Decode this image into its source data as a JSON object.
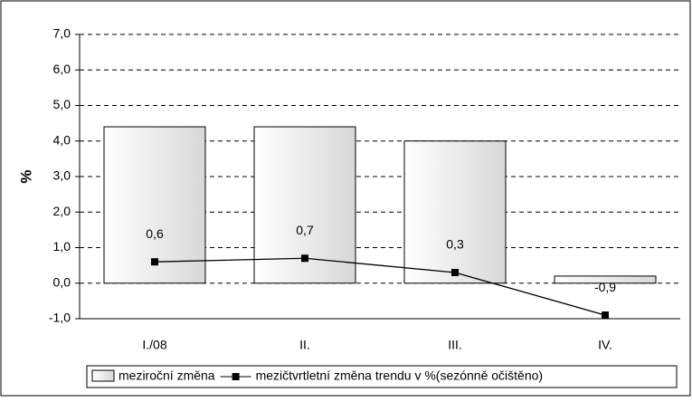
{
  "chart_data": {
    "type": "bar",
    "y_label": "%",
    "categories": [
      "I./08",
      "II.",
      "III.",
      "IV."
    ],
    "series": [
      {
        "name": "meziroční změna",
        "type": "bar",
        "color": "#e8e8e8",
        "values": [
          4.4,
          4.4,
          4.0,
          0.2
        ]
      },
      {
        "name": "mezičtvrtletní změna trendu v %(sezónně očištěno)",
        "type": "line",
        "color": "#000000",
        "values": [
          0.6,
          0.7,
          0.3,
          -0.9
        ],
        "value_labels": [
          "0,6",
          "0,7",
          "0,3",
          "-0,9"
        ]
      }
    ],
    "ylim": [
      -1,
      7
    ],
    "yticks": [
      {
        "value": -1,
        "label": "-1,0"
      },
      {
        "value": 0,
        "label": "0,0"
      },
      {
        "value": 1,
        "label": "1,0"
      },
      {
        "value": 2,
        "label": "2,0"
      },
      {
        "value": 3,
        "label": "3,0"
      },
      {
        "value": 4,
        "label": "4,0"
      },
      {
        "value": 5,
        "label": "5,0"
      },
      {
        "value": 6,
        "label": "6,0"
      },
      {
        "value": 7,
        "label": "7,0"
      }
    ],
    "grid": true
  }
}
